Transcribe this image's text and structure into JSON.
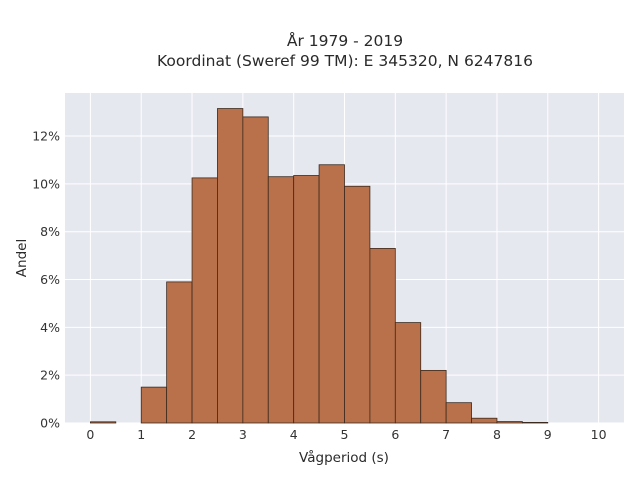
{
  "chart_data": {
    "type": "bar",
    "title_line1": "År 1979 - 2019",
    "title_line2": "Koordinat (Sweref 99 TM): E 345320, N 6247816",
    "xlabel": "Vågperiod (s)",
    "ylabel": "Andel",
    "bin_width": 0.5,
    "bin_starts": [
      0,
      0.5,
      1,
      1.5,
      2,
      2.5,
      3,
      3.5,
      4,
      4.5,
      5,
      5.5,
      6,
      6.5,
      7,
      7.5,
      8,
      8.5,
      9,
      9.5
    ],
    "values": [
      0.05,
      0,
      1.5,
      5.9,
      10.25,
      13.15,
      12.8,
      10.3,
      10.35,
      10.8,
      9.9,
      7.3,
      4.2,
      2.2,
      0.85,
      0.2,
      0.06,
      0.02,
      0,
      0
    ],
    "x_ticks": [
      0,
      1,
      2,
      3,
      4,
      5,
      6,
      7,
      8,
      9,
      10
    ],
    "y_ticks": [
      0,
      2,
      4,
      6,
      8,
      10,
      12
    ],
    "y_tick_suffix": "%",
    "xlim": [
      -0.5,
      10.5
    ],
    "ylim": [
      0,
      13.8
    ],
    "grid": true,
    "legend": "none",
    "colors": {
      "bar_fill": "#b8714a",
      "bar_stroke": "#3d2a1e",
      "plot_background": "#e6e8f0",
      "grid": "#ffffff"
    }
  }
}
